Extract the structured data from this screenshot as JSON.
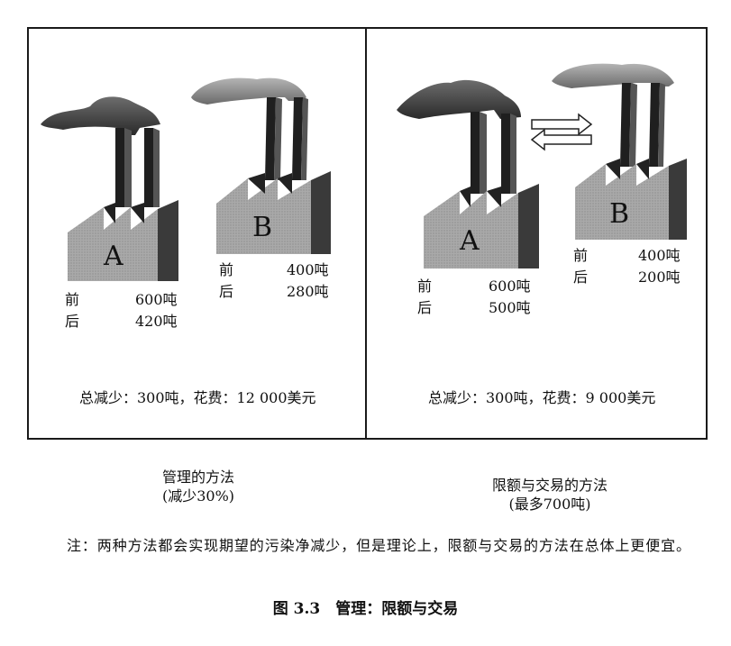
{
  "left_panel": {
    "factory_a": {
      "letter": "A",
      "before_label": "前",
      "before_value": "600吨",
      "after_label": "后",
      "after_value": "420吨"
    },
    "factory_b": {
      "letter": "B",
      "before_label": "前",
      "before_value": "400吨",
      "after_label": "后",
      "after_value": "280吨"
    },
    "total": "总减少：300吨，花费：12 000美元",
    "caption_line1": "管理的方法",
    "caption_line2": "(减少30%)"
  },
  "right_panel": {
    "factory_a": {
      "letter": "A",
      "before_label": "前",
      "before_value": "600吨",
      "after_label": "后",
      "after_value": "500吨"
    },
    "factory_b": {
      "letter": "B",
      "before_label": "前",
      "before_value": "400吨",
      "after_label": "后",
      "after_value": "200吨"
    },
    "total": "总减少：300吨，花费：9 000美元",
    "caption_line1": "限额与交易的方法",
    "caption_line2": "(最多700吨)"
  },
  "note": "注：两种方法都会实现期望的污染净减少，但是理论上，限额与交易的方法在总体上更便宜。",
  "figure_title": "图 3.3　管理：限额与交易",
  "icons": {
    "trade_arrows": "double-arrow-icon",
    "factory": "factory-icon",
    "smoke": "smoke-cloud-icon"
  }
}
